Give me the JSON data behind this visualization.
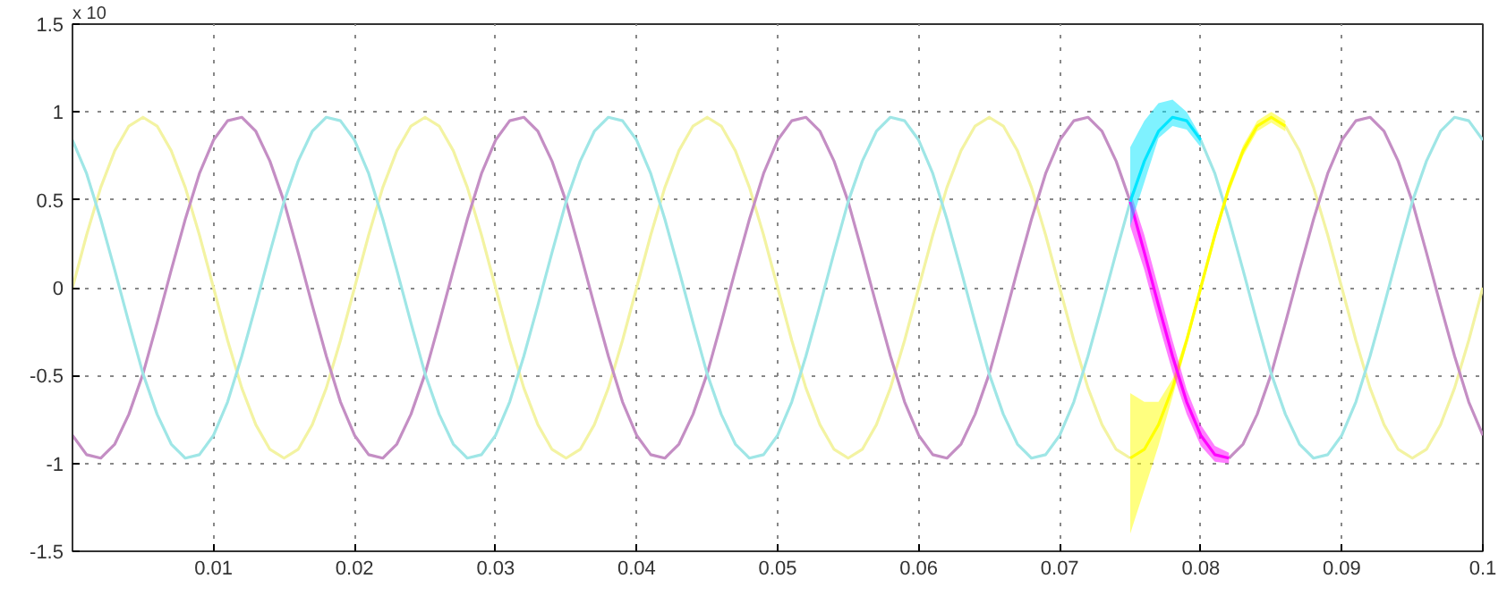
{
  "chart_data": {
    "type": "line",
    "annotations": [
      "x 10"
    ],
    "x": [
      0,
      0.001,
      0.002,
      0.003,
      0.004,
      0.005,
      0.006,
      0.007,
      0.008,
      0.009,
      0.01,
      0.011,
      0.012,
      0.013,
      0.014,
      0.015,
      0.016,
      0.017,
      0.018,
      0.019,
      0.02,
      0.021,
      0.022,
      0.023,
      0.024,
      0.025,
      0.026,
      0.027,
      0.028,
      0.029,
      0.03,
      0.031,
      0.032,
      0.033,
      0.034,
      0.035,
      0.036,
      0.037,
      0.038,
      0.039,
      0.04,
      0.041,
      0.042,
      0.043,
      0.044,
      0.045,
      0.046,
      0.047,
      0.048,
      0.049,
      0.05,
      0.051,
      0.052,
      0.053,
      0.054,
      0.055,
      0.056,
      0.057,
      0.058,
      0.059,
      0.06,
      0.061,
      0.062,
      0.063,
      0.064,
      0.065,
      0.066,
      0.067,
      0.068,
      0.069,
      0.07,
      0.071,
      0.072,
      0.073,
      0.074,
      0.075,
      0.076,
      0.077,
      0.078,
      0.079,
      0.08,
      0.081,
      0.082,
      0.083,
      0.084,
      0.085,
      0.086,
      0.087,
      0.088,
      0.089,
      0.09,
      0.091,
      0.092,
      0.093,
      0.094,
      0.095,
      0.096,
      0.097,
      0.098,
      0.099,
      0.1
    ],
    "series": [
      {
        "color": "#f3f3a2",
        "values": [
          0,
          0.3,
          0.57,
          0.78,
          0.92,
          0.97,
          0.92,
          0.78,
          0.57,
          0.3,
          0,
          -0.3,
          -0.57,
          -0.78,
          -0.92,
          -0.97,
          -0.92,
          -0.78,
          -0.57,
          -0.3,
          0,
          0.3,
          0.57,
          0.78,
          0.92,
          0.97,
          0.92,
          0.78,
          0.57,
          0.3,
          0,
          -0.3,
          -0.57,
          -0.78,
          -0.92,
          -0.97,
          -0.92,
          -0.78,
          -0.57,
          -0.3,
          0,
          0.3,
          0.57,
          0.78,
          0.92,
          0.97,
          0.92,
          0.78,
          0.57,
          0.3,
          0,
          -0.3,
          -0.57,
          -0.78,
          -0.92,
          -0.97,
          -0.92,
          -0.78,
          -0.57,
          -0.3,
          0,
          0.3,
          0.57,
          0.78,
          0.92,
          0.97,
          0.92,
          0.78,
          0.57,
          0.3,
          0,
          -0.3,
          -0.57,
          -0.78,
          -0.92,
          -0.97,
          null,
          null,
          null,
          null,
          null,
          null,
          null,
          null,
          null,
          null,
          0.92,
          0.78,
          0.57,
          0.3,
          0,
          -0.3,
          -0.57,
          -0.78,
          -0.92,
          -0.97,
          -0.92,
          -0.78,
          -0.57,
          -0.3,
          0
        ]
      },
      {
        "color": "#c48ec4",
        "values": [
          -0.84,
          -0.95,
          -0.97,
          -0.89,
          -0.72,
          -0.49,
          -0.2,
          0.1,
          0.39,
          0.65,
          0.84,
          0.95,
          0.97,
          0.89,
          0.72,
          0.49,
          0.2,
          -0.1,
          -0.39,
          -0.65,
          -0.84,
          -0.95,
          -0.97,
          -0.89,
          -0.72,
          -0.49,
          -0.2,
          0.1,
          0.39,
          0.65,
          0.84,
          0.95,
          0.97,
          0.89,
          0.72,
          0.49,
          0.2,
          -0.1,
          -0.39,
          -0.65,
          -0.84,
          -0.95,
          -0.97,
          -0.89,
          -0.72,
          -0.49,
          -0.2,
          0.1,
          0.39,
          0.65,
          0.84,
          0.95,
          0.97,
          0.89,
          0.72,
          0.49,
          0.2,
          -0.1,
          -0.39,
          -0.65,
          -0.84,
          -0.95,
          -0.97,
          -0.89,
          -0.72,
          -0.49,
          -0.2,
          0.1,
          0.39,
          0.65,
          0.84,
          0.95,
          0.97,
          0.89,
          0.72,
          0.49,
          null,
          null,
          null,
          null,
          null,
          null,
          -0.97,
          -0.89,
          -0.72,
          -0.49,
          -0.2,
          0.1,
          0.39,
          0.65,
          0.84,
          0.95,
          0.97,
          0.89,
          0.72,
          0.49,
          0.2,
          -0.1,
          -0.39,
          -0.65,
          -0.84
        ]
      },
      {
        "color": "#9fe6e6",
        "values": [
          0.84,
          0.65,
          0.39,
          0.1,
          -0.2,
          -0.49,
          -0.72,
          -0.89,
          -0.97,
          -0.95,
          -0.84,
          -0.65,
          -0.39,
          -0.1,
          0.2,
          0.49,
          0.72,
          0.89,
          0.97,
          0.95,
          0.84,
          0.65,
          0.39,
          0.1,
          -0.2,
          -0.49,
          -0.72,
          -0.89,
          -0.97,
          -0.95,
          -0.84,
          -0.65,
          -0.39,
          -0.1,
          0.2,
          0.49,
          0.72,
          0.89,
          0.97,
          0.95,
          0.84,
          0.65,
          0.39,
          0.1,
          -0.2,
          -0.49,
          -0.72,
          -0.89,
          -0.97,
          -0.95,
          -0.84,
          -0.65,
          -0.39,
          -0.1,
          0.2,
          0.49,
          0.72,
          0.89,
          0.97,
          0.95,
          0.84,
          0.65,
          0.39,
          0.1,
          -0.2,
          -0.49,
          -0.72,
          -0.89,
          -0.97,
          -0.95,
          -0.84,
          -0.65,
          -0.39,
          -0.1,
          0.2,
          0.49,
          null,
          null,
          null,
          null,
          0.84,
          0.65,
          0.39,
          0.1,
          -0.2,
          -0.49,
          -0.72,
          -0.89,
          -0.97,
          -0.95,
          -0.84,
          -0.65,
          -0.39,
          -0.1,
          0.2,
          0.49,
          0.72,
          0.89,
          0.97,
          0.95,
          0.84
        ]
      },
      {
        "color": "#ffff00",
        "x": [
          0.075,
          0.076,
          0.077,
          0.078,
          0.079,
          0.08,
          0.081,
          0.082,
          0.083,
          0.084,
          0.085,
          0.086
        ],
        "values": [
          -0.97,
          -0.92,
          -0.78,
          -0.57,
          -0.3,
          0,
          0.3,
          0.57,
          0.78,
          0.92,
          0.97,
          0.92
        ],
        "lower": [
          -1.4,
          -1.15,
          -0.9,
          -0.62,
          -0.33,
          -0.03,
          0.27,
          0.54,
          0.75,
          0.89,
          0.94,
          0.89
        ],
        "upper": [
          -0.6,
          -0.65,
          -0.65,
          -0.52,
          -0.27,
          0.03,
          0.33,
          0.6,
          0.81,
          0.95,
          1.0,
          0.95
        ]
      },
      {
        "color": "#ff00ff",
        "x": [
          0.075,
          0.076,
          0.077,
          0.078,
          0.079,
          0.08,
          0.081,
          0.082
        ],
        "values": [
          0.49,
          0.2,
          -0.1,
          -0.39,
          -0.65,
          -0.84,
          -0.95,
          -0.97
        ],
        "lower": [
          0.35,
          0.1,
          -0.2,
          -0.48,
          -0.72,
          -0.9,
          -0.99,
          -1.0
        ],
        "upper": [
          0.55,
          0.3,
          0,
          -0.3,
          -0.58,
          -0.78,
          -0.9,
          -0.94
        ]
      },
      {
        "color": "#00e5ff",
        "x": [
          0.075,
          0.076,
          0.077,
          0.078,
          0.079,
          0.08
        ],
        "values": [
          0.49,
          0.72,
          0.89,
          0.97,
          0.95,
          0.84
        ],
        "lower": [
          0.35,
          0.6,
          0.85,
          0.92,
          0.9,
          0.8
        ],
        "upper": [
          0.8,
          0.95,
          1.05,
          1.07,
          1.0,
          0.86
        ]
      }
    ],
    "xlim": [
      0,
      0.1
    ],
    "ylim": [
      -1.5,
      1.5
    ],
    "xticks": [
      0.01,
      0.02,
      0.03,
      0.04,
      0.05,
      0.06,
      0.07,
      0.08,
      0.09,
      0.1
    ],
    "yticks": [
      -1.5,
      -1,
      -0.5,
      0,
      0.5,
      1,
      1.5
    ],
    "grid": true,
    "line_style": "solid",
    "marker": "none"
  }
}
